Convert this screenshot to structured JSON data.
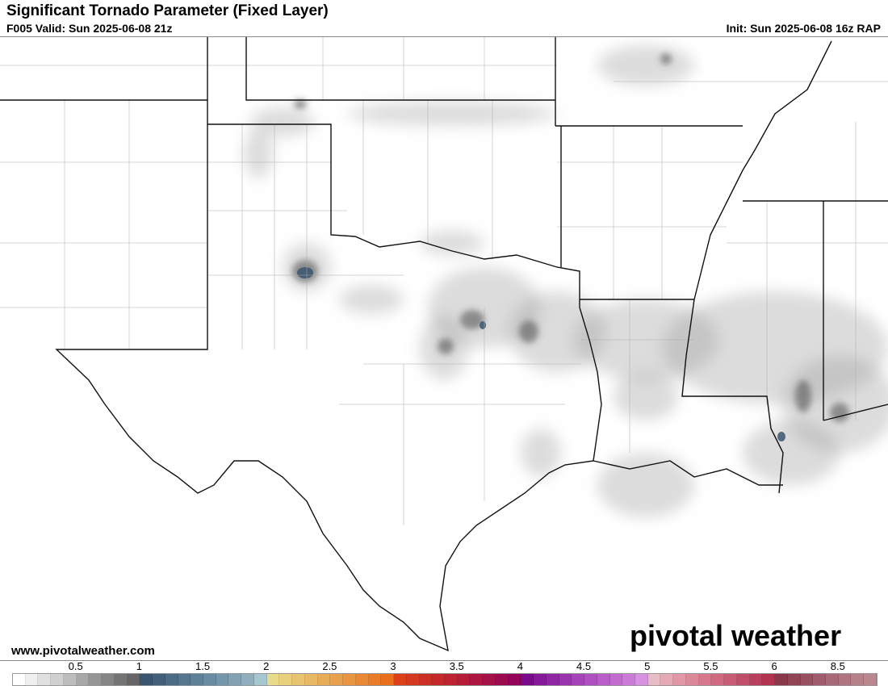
{
  "header": {
    "title": "Significant Tornado Parameter (Fixed Layer)",
    "valid": "F005 Valid: Sun 2025-06-08 21z",
    "init": "Init: Sun 2025-06-08 16z RAP"
  },
  "footer": {
    "website": "www.pivotalweather.com",
    "logo": "pivotal weather"
  },
  "map": {
    "region": "Southern Plains / Lower Mississippi Valley",
    "field_colors": {
      "low": "#a0a0a0",
      "moderate": "#606060",
      "high": "#3a5570"
    }
  },
  "colorbar": {
    "labels": [
      "0.5",
      "1",
      "1.5",
      "2",
      "2.5",
      "3",
      "3.5",
      "4",
      "4.5",
      "5",
      "5.5",
      "6",
      "8.5"
    ],
    "colors": [
      "#ffffff",
      "#f0f0f0",
      "#e0e0e0",
      "#d0d0d0",
      "#bdbdbd",
      "#a8a8a8",
      "#969696",
      "#858585",
      "#747474",
      "#666666",
      "#3a5570",
      "#43607a",
      "#4c6b84",
      "#56768e",
      "#5f8198",
      "#6a8ca2",
      "#7597ab",
      "#82a2b4",
      "#90aebd",
      "#a6c6d0",
      "#e8dc8c",
      "#e8d07c",
      "#e8c470",
      "#e8b864",
      "#e8ac58",
      "#e8a04c",
      "#e89440",
      "#e88834",
      "#e87c28",
      "#e8701c",
      "#dc4018",
      "#d43820",
      "#cc3024",
      "#c42828",
      "#bc2230",
      "#b41c38",
      "#ac1640",
      "#a41048",
      "#9c0a50",
      "#940458",
      "#7a0a8a",
      "#86189a",
      "#9026a4",
      "#9a34ae",
      "#a442b8",
      "#ae50c0",
      "#b85ec8",
      "#c26cd0",
      "#cc7ad8",
      "#d890e0",
      "#e8bcc4",
      "#e4aab4",
      "#e098a6",
      "#dc8898",
      "#d8788c",
      "#d06a80",
      "#c85c74",
      "#c04e68",
      "#b8405c",
      "#b03450",
      "#883848",
      "#904454",
      "#985060",
      "#a05c6c",
      "#a86878",
      "#b07480",
      "#b88088",
      "#bc8890"
    ]
  }
}
